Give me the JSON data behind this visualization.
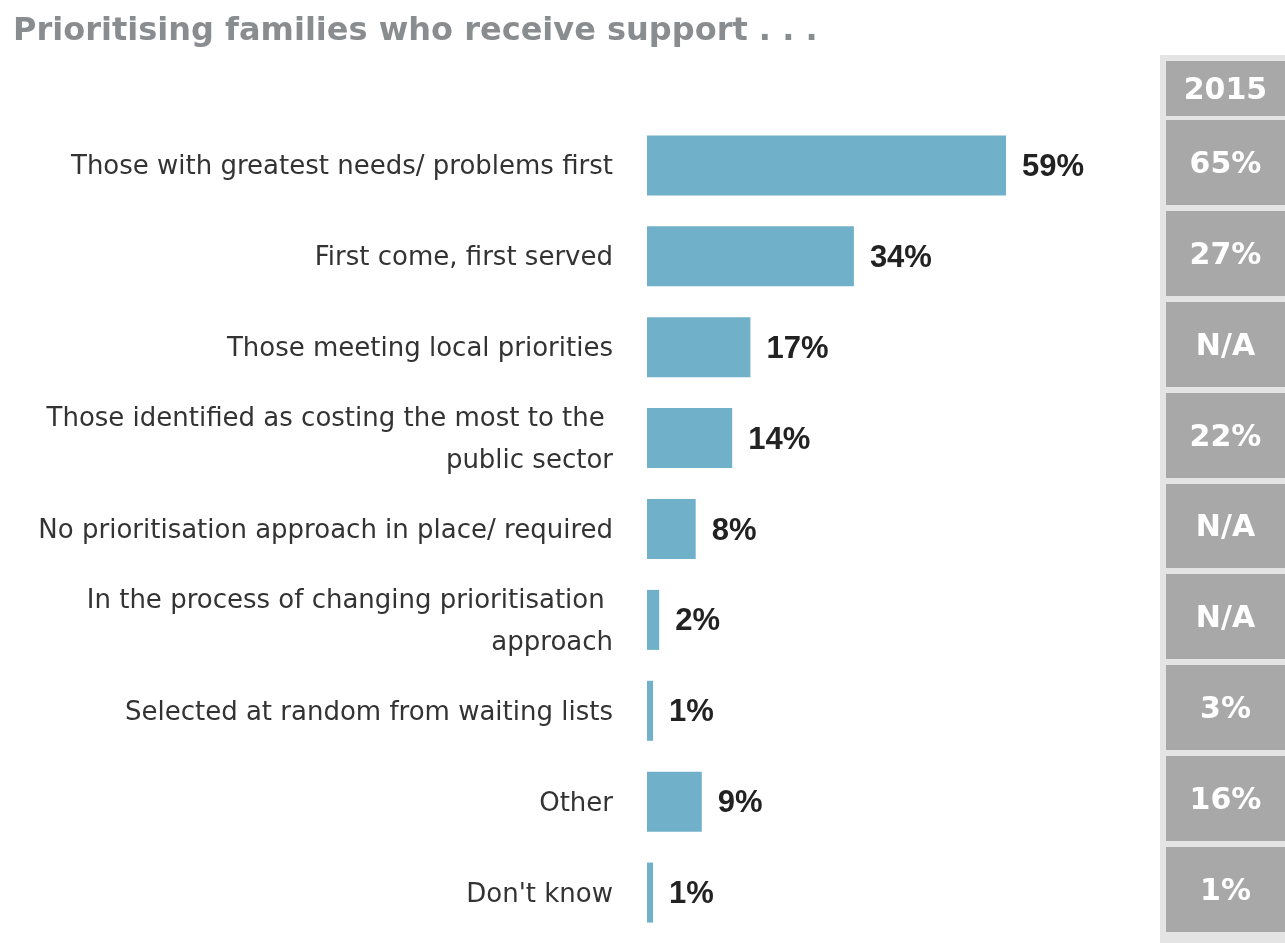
{
  "chart_data": {
    "type": "bar",
    "orientation": "horizontal",
    "title": "Prioritising families who receive support . . .",
    "categories": [
      "Those with greatest needs/ problems first",
      "First come, first served",
      "Those meeting local priorities",
      "Those identified as costing the most to the public sector",
      "No prioritisation approach in place/ required",
      "In the process of changing prioritisation approach",
      "Selected at random from waiting lists",
      "Other",
      "Don't know"
    ],
    "values": [
      59,
      34,
      17,
      14,
      8,
      2,
      1,
      9,
      1
    ],
    "color": "#70b0c8",
    "value_labels": [
      "59%",
      "34%",
      "17%",
      "14%",
      "8%",
      "2%",
      "1%",
      "9%",
      "1%"
    ],
    "annotations": [
      "2015",
      "65%",
      "27%",
      "N/A",
      "22%",
      "N/A",
      "N/A",
      "3%",
      "16%",
      "1%"
    ]
  }
}
